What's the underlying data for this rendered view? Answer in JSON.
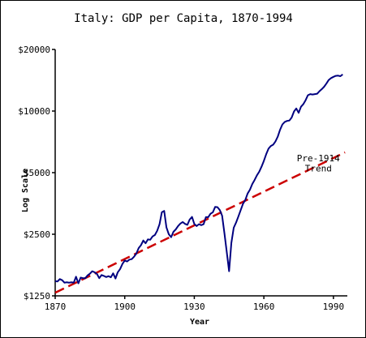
{
  "chart_data": {
    "type": "line",
    "title": "Italy: GDP per Capita, 1870-1994",
    "xlabel": "Year",
    "ylabel": "Log Scale",
    "y_scale": "log",
    "xlim": [
      1870,
      1996
    ],
    "ylim": [
      1250,
      20000
    ],
    "x_ticks": [
      1870,
      1900,
      1930,
      1960,
      1990
    ],
    "x_tick_labels": [
      "1870",
      "1900",
      "1930",
      "1960",
      "1990"
    ],
    "y_ticks": [
      1250,
      2500,
      5000,
      10000,
      20000
    ],
    "y_tick_labels": [
      "$1250",
      "$2500",
      "$5000",
      "$10000",
      "$20000"
    ],
    "grid": false,
    "colors": {
      "gdp": "#000080",
      "trend": "#cc0000"
    },
    "annotations": [
      {
        "text": "Pre-1914",
        "x": 1983.5,
        "y": 5900
      },
      {
        "text": "Trend",
        "x": 1983.5,
        "y": 5250
      }
    ],
    "series": [
      {
        "style": "solid",
        "x": [
          1870,
          1871,
          1872,
          1873,
          1874,
          1875,
          1876,
          1877,
          1878,
          1879,
          1880,
          1881,
          1882,
          1883,
          1884,
          1885,
          1886,
          1887,
          1888,
          1889,
          1890,
          1891,
          1892,
          1893,
          1894,
          1895,
          1896,
          1897,
          1898,
          1899,
          1900,
          1901,
          1902,
          1903,
          1904,
          1905,
          1906,
          1907,
          1908,
          1909,
          1910,
          1911,
          1912,
          1913,
          1914,
          1915,
          1916,
          1917,
          1918,
          1919,
          1920,
          1921,
          1922,
          1923,
          1924,
          1925,
          1926,
          1927,
          1928,
          1929,
          1930,
          1931,
          1932,
          1933,
          1934,
          1935,
          1936,
          1937,
          1938,
          1939,
          1940,
          1941,
          1942,
          1943,
          1944,
          1945,
          1946,
          1947,
          1948,
          1949,
          1950,
          1951,
          1952,
          1953,
          1954,
          1955,
          1956,
          1957,
          1958,
          1959,
          1960,
          1961,
          1962,
          1963,
          1964,
          1965,
          1966,
          1967,
          1968,
          1969,
          1970,
          1971,
          1972,
          1973,
          1974,
          1975,
          1976,
          1977,
          1978,
          1979,
          1980,
          1981,
          1982,
          1983,
          1984,
          1985,
          1986,
          1987,
          1988,
          1989,
          1990,
          1991,
          1992,
          1993,
          1994
        ],
        "values": [
          1475,
          1470,
          1510,
          1490,
          1450,
          1455,
          1450,
          1455,
          1450,
          1550,
          1440,
          1535,
          1525,
          1525,
          1575,
          1605,
          1650,
          1630,
          1600,
          1525,
          1580,
          1565,
          1545,
          1560,
          1540,
          1610,
          1520,
          1630,
          1690,
          1790,
          1860,
          1840,
          1880,
          1890,
          1940,
          2010,
          2140,
          2210,
          2330,
          2260,
          2360,
          2350,
          2440,
          2480,
          2600,
          2800,
          3200,
          3250,
          2700,
          2500,
          2420,
          2570,
          2640,
          2740,
          2820,
          2870,
          2810,
          2780,
          2950,
          3040,
          2810,
          2740,
          2800,
          2770,
          2800,
          3030,
          3030,
          3150,
          3200,
          3400,
          3390,
          3280,
          3080,
          2520,
          2050,
          1650,
          2270,
          2690,
          2850,
          3050,
          3280,
          3520,
          3680,
          3950,
          4130,
          4400,
          4600,
          4850,
          5050,
          5350,
          5700,
          6150,
          6550,
          6750,
          6850,
          7100,
          7500,
          8100,
          8600,
          8850,
          8950,
          8990,
          9300,
          9950,
          10300,
          9800,
          10500,
          10800,
          11300,
          11950,
          12100,
          12050,
          12100,
          12150,
          12500,
          12800,
          13150,
          13650,
          14200,
          14500,
          14700,
          14850,
          14900,
          14800,
          15100
        ]
      },
      {
        "name": "Pre-1914 Trend",
        "style": "dashed",
        "x": [
          1870,
          1995
        ],
        "values": [
          1295,
          6280
        ]
      }
    ]
  }
}
